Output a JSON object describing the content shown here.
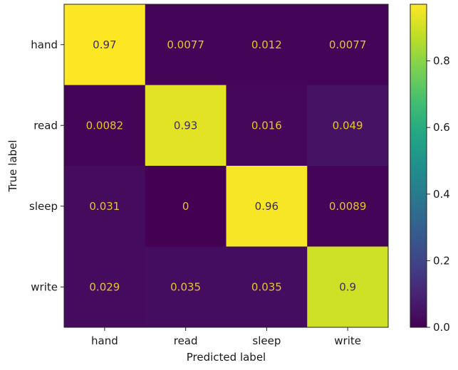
{
  "chart_data": {
    "type": "heatmap",
    "title": "",
    "xlabel": "Predicted label",
    "ylabel": "True label",
    "x_categories": [
      "hand",
      "read",
      "sleep",
      "write"
    ],
    "y_categories": [
      "hand",
      "read",
      "sleep",
      "write"
    ],
    "values": [
      [
        0.97,
        0.0077,
        0.012,
        0.0077
      ],
      [
        0.0082,
        0.93,
        0.016,
        0.049
      ],
      [
        0.031,
        0,
        0.96,
        0.0089
      ],
      [
        0.029,
        0.035,
        0.035,
        0.9
      ]
    ],
    "cell_labels": [
      [
        "0.97",
        "0.0077",
        "0.012",
        "0.0077"
      ],
      [
        "0.0082",
        "0.93",
        "0.016",
        "0.049"
      ],
      [
        "0.031",
        "0",
        "0.96",
        "0.0089"
      ],
      [
        "0.029",
        "0.035",
        "0.035",
        "0.9"
      ]
    ],
    "colormap": "viridis",
    "color_range": [
      0,
      0.97
    ],
    "colorbar": {
      "ticks": [
        0.0,
        0.2,
        0.4,
        0.6,
        0.8
      ],
      "tick_labels": [
        "0.0",
        "0.2",
        "0.4",
        "0.6",
        "0.8"
      ]
    },
    "label_colors": {
      "on_dark": "#e3c728",
      "on_bright": "#3b2a5e"
    },
    "grid": false,
    "legend": "colorbar-right"
  }
}
